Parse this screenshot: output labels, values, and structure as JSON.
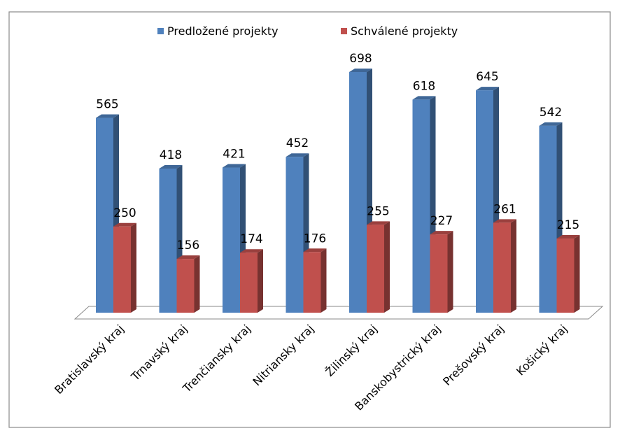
{
  "chart_data": {
    "type": "bar",
    "title": "",
    "categories": [
      "Bratislavský kraj",
      "Trnavský kraj",
      "Trenčiansky kraj",
      "Nitriansky kraj",
      "Žilinský kraj",
      "Banskobystrický kraj",
      "Prešovský kraj",
      "Košický kraj"
    ],
    "series": [
      {
        "name": "Predložené projekty",
        "values": [
          565,
          418,
          421,
          452,
          698,
          618,
          645,
          542
        ],
        "color": "#4F81BD"
      },
      {
        "name": "Schválené projekty",
        "values": [
          250,
          156,
          174,
          176,
          255,
          227,
          261,
          215
        ],
        "color": "#C0504D"
      }
    ],
    "ylim": [
      0,
      750
    ],
    "grid": false,
    "legend_position": "top",
    "style": "3d-clustered-column"
  }
}
